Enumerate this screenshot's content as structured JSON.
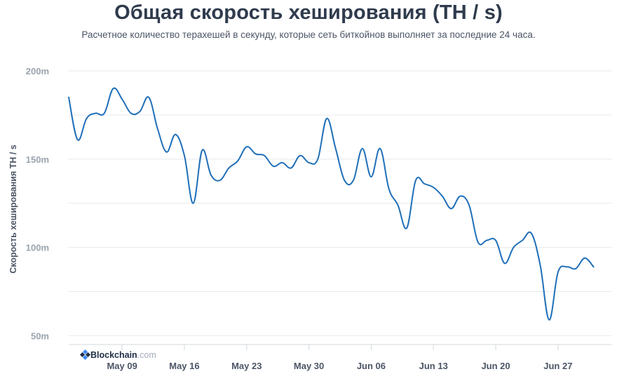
{
  "chart_data": {
    "type": "line",
    "title": "Общая скорость хеширования (TH / s)",
    "subtitle": "Расчетное количество терахешей в секунду, которые сеть биткойнов выполняет за последние 24 часа.",
    "xlabel": "",
    "ylabel": "Скорость хеширования TH / s",
    "ylim": [
      45000000,
      200000000
    ],
    "y_ticks": [
      {
        "value": 200000000,
        "label": "200m"
      },
      {
        "value": 150000000,
        "label": "150m"
      },
      {
        "value": 100000000,
        "label": "100m"
      },
      {
        "value": 50000000,
        "label": "50m"
      }
    ],
    "x_start": "2021-05-03",
    "x_end": "2021-07-03",
    "x_ticks": [
      {
        "date": "2021-05-09",
        "label": "May 09"
      },
      {
        "date": "2021-05-16",
        "label": "May 16"
      },
      {
        "date": "2021-05-23",
        "label": "May 23"
      },
      {
        "date": "2021-05-30",
        "label": "May 30"
      },
      {
        "date": "2021-06-06",
        "label": "Jun 06"
      },
      {
        "date": "2021-06-13",
        "label": "Jun 13"
      },
      {
        "date": "2021-06-20",
        "label": "Jun 20"
      },
      {
        "date": "2021-06-27",
        "label": "Jun 27"
      }
    ],
    "grid": true,
    "line_color": "#1f6fb8",
    "series": [
      {
        "name": "",
        "points": [
          [
            "2021-05-03",
            185000000
          ],
          [
            "2021-05-04",
            161000000
          ],
          [
            "2021-05-05",
            173000000
          ],
          [
            "2021-05-06",
            176000000
          ],
          [
            "2021-05-07",
            176000000
          ],
          [
            "2021-05-08",
            190000000
          ],
          [
            "2021-05-09",
            184000000
          ],
          [
            "2021-05-10",
            176000000
          ],
          [
            "2021-05-11",
            177000000
          ],
          [
            "2021-05-12",
            185000000
          ],
          [
            "2021-05-13",
            167000000
          ],
          [
            "2021-05-14",
            154000000
          ],
          [
            "2021-05-15",
            164000000
          ],
          [
            "2021-05-16",
            152000000
          ],
          [
            "2021-05-17",
            125000000
          ],
          [
            "2021-05-18",
            155000000
          ],
          [
            "2021-05-19",
            141000000
          ],
          [
            "2021-05-20",
            138000000
          ],
          [
            "2021-05-21",
            145000000
          ],
          [
            "2021-05-22",
            149000000
          ],
          [
            "2021-05-23",
            157000000
          ],
          [
            "2021-05-24",
            153000000
          ],
          [
            "2021-05-25",
            152000000
          ],
          [
            "2021-05-26",
            146000000
          ],
          [
            "2021-05-27",
            148000000
          ],
          [
            "2021-05-28",
            145000000
          ],
          [
            "2021-05-29",
            152000000
          ],
          [
            "2021-05-30",
            148000000
          ],
          [
            "2021-05-31",
            150000000
          ],
          [
            "2021-06-01",
            173000000
          ],
          [
            "2021-06-02",
            156000000
          ],
          [
            "2021-06-03",
            138000000
          ],
          [
            "2021-06-04",
            138000000
          ],
          [
            "2021-06-05",
            156000000
          ],
          [
            "2021-06-06",
            140000000
          ],
          [
            "2021-06-07",
            156000000
          ],
          [
            "2021-06-08",
            133000000
          ],
          [
            "2021-06-09",
            124000000
          ],
          [
            "2021-06-10",
            111000000
          ],
          [
            "2021-06-11",
            138000000
          ],
          [
            "2021-06-12",
            136000000
          ],
          [
            "2021-06-13",
            134000000
          ],
          [
            "2021-06-14",
            129000000
          ],
          [
            "2021-06-15",
            122000000
          ],
          [
            "2021-06-16",
            129000000
          ],
          [
            "2021-06-17",
            124000000
          ],
          [
            "2021-06-18",
            103000000
          ],
          [
            "2021-06-19",
            104000000
          ],
          [
            "2021-06-20",
            104000000
          ],
          [
            "2021-06-21",
            91000000
          ],
          [
            "2021-06-22",
            100000000
          ],
          [
            "2021-06-23",
            104000000
          ],
          [
            "2021-06-24",
            108000000
          ],
          [
            "2021-06-25",
            90000000
          ],
          [
            "2021-06-26",
            59000000
          ],
          [
            "2021-06-27",
            86000000
          ],
          [
            "2021-06-28",
            89000000
          ],
          [
            "2021-06-29",
            88000000
          ],
          [
            "2021-06-30",
            94000000
          ],
          [
            "2021-07-01",
            89000000
          ]
        ]
      }
    ]
  },
  "watermark": {
    "brand": "Blockchain",
    "domain": ".com",
    "icon": "blockchain-logo-icon",
    "color": "#1e2d44"
  },
  "colors": {
    "grid": "#e6e9ed",
    "axis": "#d3d8de",
    "title": "#2f3b4d"
  }
}
